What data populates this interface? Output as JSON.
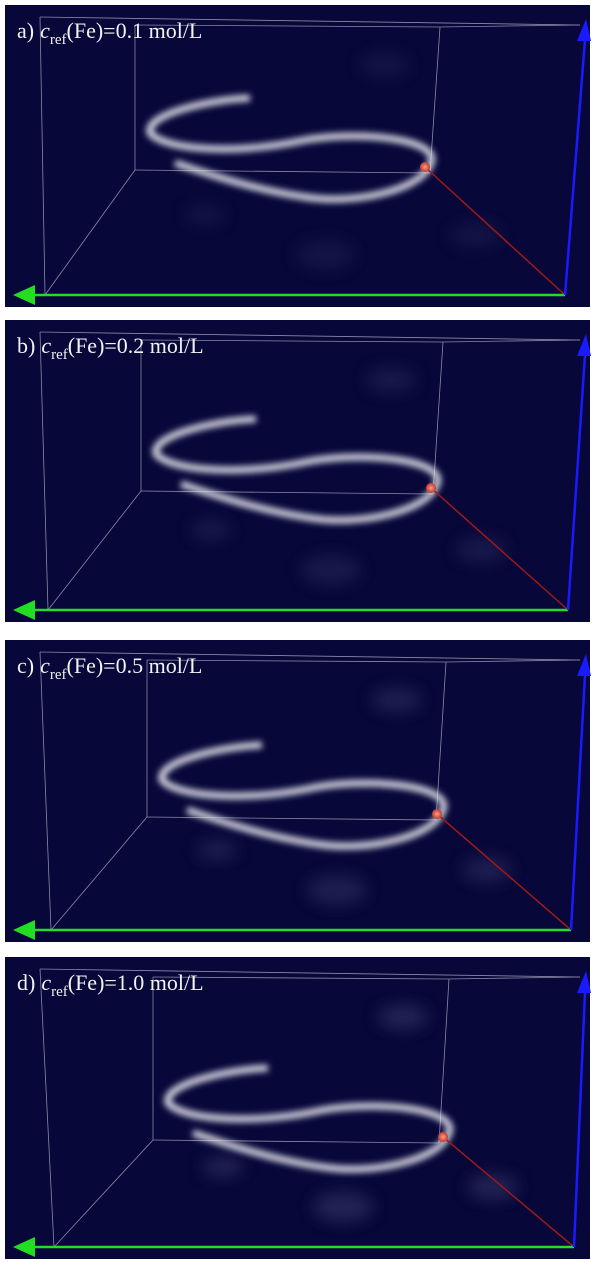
{
  "panels": [
    {
      "letter": "a)",
      "symbol": "c",
      "subscript": "ref",
      "rest": "(Fe)=0.1 mol/L"
    },
    {
      "letter": "b)",
      "symbol": "c",
      "subscript": "ref",
      "rest": "(Fe)=0.2 mol/L"
    },
    {
      "letter": "c)",
      "symbol": "c",
      "subscript": "ref",
      "rest": "(Fe)=0.5 mol/L"
    },
    {
      "letter": "d)",
      "symbol": "c",
      "subscript": "ref",
      "rest": "(Fe)=1.0 mol/L"
    }
  ]
}
